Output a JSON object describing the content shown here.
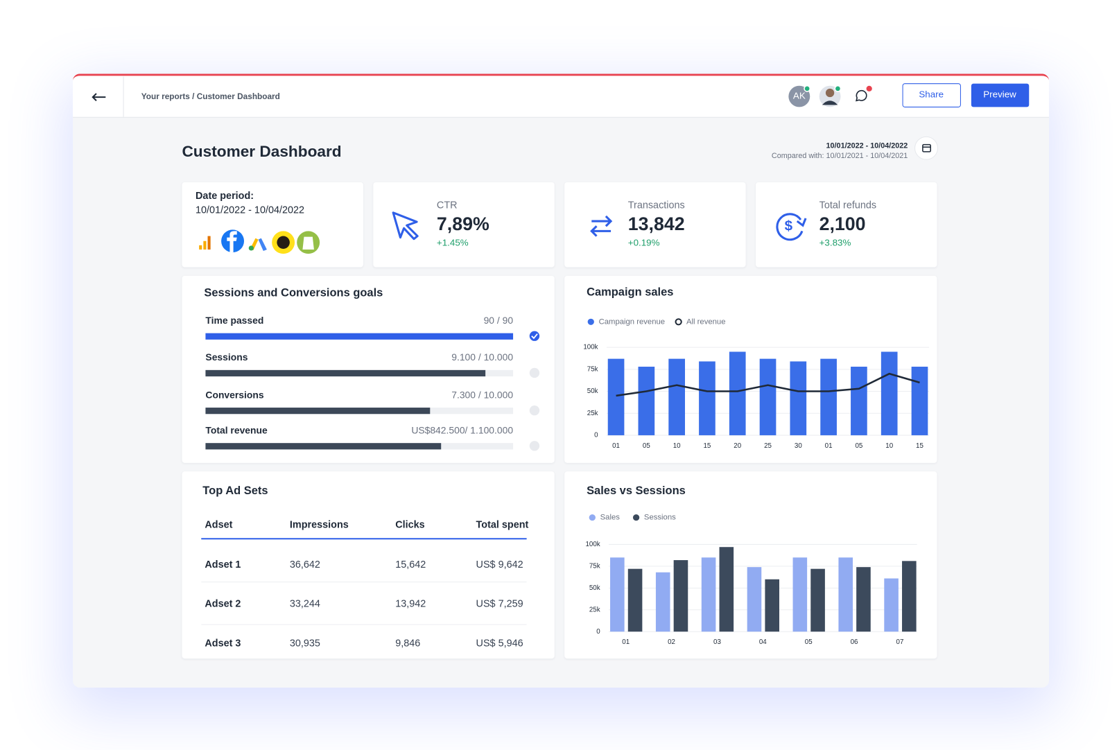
{
  "header": {
    "breadcrumb": "Your reports / Customer Dashboard",
    "avatar_initials": "AK",
    "share": "Share",
    "preview": "Preview"
  },
  "dashboard": {
    "title": "Customer Dashboard",
    "date_range": "10/01/2022 - 10/04/2022",
    "compared": "Compared with: 10/01/2021 - 10/04/2021"
  },
  "date_card": {
    "label": "Date period:",
    "range": "10/01/2022 - 10/04/2022"
  },
  "kpis": [
    {
      "label": "CTR",
      "value": "7,89%",
      "change": "+1.45%"
    },
    {
      "label": "Transactions",
      "value": "13,842",
      "change": "+0.19%"
    },
    {
      "label": "Total refunds",
      "value": "2,100",
      "change": "+3.83%"
    }
  ],
  "goals": {
    "title": "Sessions and Conversions goals",
    "items": [
      {
        "label": "Time passed",
        "current": 90,
        "target": 90,
        "progress_label": "90 / 90"
      },
      {
        "label": "Sessions",
        "current": 9100,
        "target": 10000,
        "progress_label": "9.100 / 10.000"
      },
      {
        "label": "Conversions",
        "current": 7300,
        "target": 10000,
        "progress_label": "7.300 / 10.000"
      },
      {
        "label": "Total revenue",
        "current": 842500,
        "target": 1100000,
        "progress_label": "US$842.500/ 1.100.000"
      }
    ]
  },
  "campaign_sales": {
    "type": "bar",
    "title": "Campaign sales",
    "categories": [
      "01",
      "05",
      "10",
      "15",
      "20",
      "25",
      "30",
      "01",
      "05",
      "10",
      "15"
    ],
    "series": [
      {
        "name": "Campaign revenue",
        "type": "bar",
        "color": "#3a6ee8",
        "values": [
          87000,
          78000,
          87000,
          84000,
          95000,
          87000,
          84000,
          87000,
          78000,
          95000,
          78000
        ]
      },
      {
        "name": "All revenue",
        "type": "line",
        "color": "#1f2937",
        "values": [
          45000,
          50000,
          57000,
          50000,
          50000,
          57000,
          50000,
          50000,
          53000,
          70000,
          60000
        ]
      }
    ],
    "ylim": [
      0,
      100000
    ],
    "yticks": [
      0,
      {
        "value": 25000,
        "label": "25k"
      },
      {
        "value": 50000,
        "label": "50k"
      },
      {
        "value": 75000,
        "label": "75k"
      },
      {
        "value": 100000,
        "label": "100k"
      }
    ],
    "grid": true
  },
  "sales_vs_sessions": {
    "type": "bar",
    "title": "Sales vs Sessions",
    "categories": [
      "01",
      "02",
      "03",
      "04",
      "05",
      "06",
      "07"
    ],
    "series": [
      {
        "name": "Sales",
        "color": "#91abf2",
        "values": [
          85000,
          68000,
          85000,
          74000,
          85000,
          85000,
          61000
        ]
      },
      {
        "name": "Sessions",
        "color": "#3c4a5c",
        "values": [
          72000,
          82000,
          97000,
          60000,
          72000,
          74000,
          81000
        ]
      }
    ],
    "ylim": [
      0,
      100000
    ],
    "yticks": [
      0,
      {
        "value": 25000,
        "label": "25k"
      },
      {
        "value": 50000,
        "label": "50k"
      },
      {
        "value": 75000,
        "label": "75k"
      },
      {
        "value": 100000,
        "label": "100k"
      }
    ],
    "grid": true
  },
  "table": {
    "title": "Top Ad Sets",
    "columns": [
      "Adset",
      "Impressions",
      "Clicks",
      "Total spent"
    ],
    "rows": [
      [
        "Adset 1",
        "36,642",
        "15,642",
        "US$ 9,642"
      ],
      [
        "Adset 2",
        "33,244",
        "13,942",
        "US$ 7,259"
      ],
      [
        "Adset 3",
        "30,935",
        "9,846",
        "US$ 5,946"
      ]
    ]
  }
}
